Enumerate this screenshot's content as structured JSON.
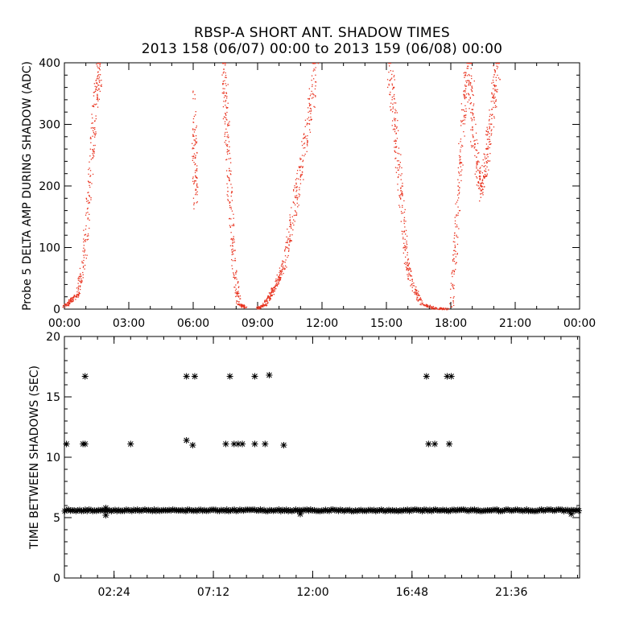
{
  "title_line1": "RBSP-A SHORT ANT. SHADOW TIMES",
  "title_line2": "2013 158 (06/07) 00:00 to 2013 159 (06/08) 00:00",
  "chart_data": [
    {
      "type": "scatter",
      "ylabel": "Probe 5 DELTA AMP DURING SHADOW (ADC)",
      "x_unit": "hours",
      "xlim": [
        0,
        24
      ],
      "ylim": [
        0,
        400
      ],
      "x_ticks": [
        0,
        3,
        6,
        9,
        12,
        15,
        18,
        21,
        24
      ],
      "x_tick_labels": [
        "00:00",
        "03:00",
        "06:00",
        "09:00",
        "12:00",
        "15:00",
        "18:00",
        "21:00",
        "00:00"
      ],
      "y_ticks": [
        0,
        100,
        200,
        300,
        400
      ],
      "y_tick_labels": [
        "0",
        "100",
        "200",
        "300",
        "400"
      ],
      "marker": "dot",
      "color": "#e8321e",
      "segments": [
        {
          "x": [
            0.0,
            0.3,
            0.6,
            0.9,
            1.1,
            1.3,
            1.5,
            1.65
          ],
          "y": [
            5,
            15,
            25,
            80,
            180,
            280,
            360,
            400
          ]
        },
        {
          "x": [
            6.0,
            6.05,
            6.1
          ],
          "y": [
            330,
            240,
            170
          ]
        },
        {
          "x": [
            7.4,
            7.5,
            7.6,
            7.75,
            7.9,
            8.1,
            8.4
          ],
          "y": [
            400,
            330,
            250,
            150,
            60,
            10,
            3
          ]
        },
        {
          "x": [
            9.0,
            9.3,
            9.6,
            9.9,
            10.2,
            10.5,
            10.8,
            11.1,
            11.4,
            11.7
          ],
          "y": [
            2,
            8,
            25,
            45,
            70,
            130,
            190,
            250,
            320,
            400
          ]
        },
        {
          "x": [
            15.1,
            15.3,
            15.5,
            15.7,
            15.9,
            16.2,
            16.6,
            17.2,
            17.8
          ],
          "y": [
            400,
            330,
            250,
            170,
            80,
            40,
            10,
            2,
            1
          ]
        },
        {
          "x": [
            18.0,
            18.2,
            18.4,
            18.6,
            18.8,
            19.0
          ],
          "y": [
            2,
            100,
            220,
            330,
            400,
            330
          ]
        },
        {
          "x": [
            19.0,
            19.2,
            19.4,
            19.6,
            19.8,
            20.0,
            20.2
          ],
          "y": [
            300,
            240,
            190,
            230,
            290,
            350,
            400
          ]
        }
      ]
    },
    {
      "type": "scatter",
      "ylabel": "TIME BETWEEN SHADOWS (SEC)",
      "x_unit": "hours",
      "xlim": [
        0,
        24.9
      ],
      "ylim": [
        0,
        20
      ],
      "x_ticks": [
        2.4,
        7.2,
        12.0,
        16.8,
        21.6
      ],
      "x_tick_labels": [
        "02:24",
        "07:12",
        "12:00",
        "16:48",
        "21:36"
      ],
      "y_ticks": [
        0,
        5,
        10,
        15,
        20
      ],
      "y_tick_labels": [
        "0",
        "5",
        "10",
        "15",
        "20"
      ],
      "marker": "asterisk",
      "color": "#000000",
      "baseline": {
        "y": 5.6,
        "x_range": [
          0,
          24.9
        ]
      },
      "points": [
        {
          "x": 0.1,
          "y": 11.1
        },
        {
          "x": 0.9,
          "y": 11.1
        },
        {
          "x": 1.0,
          "y": 16.7
        },
        {
          "x": 1.0,
          "y": 11.1
        },
        {
          "x": 2.0,
          "y": 5.8
        },
        {
          "x": 2.0,
          "y": 5.2
        },
        {
          "x": 3.2,
          "y": 11.1
        },
        {
          "x": 5.9,
          "y": 11.4
        },
        {
          "x": 5.9,
          "y": 16.7
        },
        {
          "x": 6.2,
          "y": 11.0
        },
        {
          "x": 6.3,
          "y": 16.7
        },
        {
          "x": 7.8,
          "y": 11.1
        },
        {
          "x": 8.0,
          "y": 16.7
        },
        {
          "x": 8.2,
          "y": 11.1
        },
        {
          "x": 8.4,
          "y": 11.1
        },
        {
          "x": 8.6,
          "y": 11.1
        },
        {
          "x": 9.2,
          "y": 16.7
        },
        {
          "x": 9.2,
          "y": 11.1
        },
        {
          "x": 9.7,
          "y": 11.1
        },
        {
          "x": 9.9,
          "y": 16.8
        },
        {
          "x": 10.6,
          "y": 11.0
        },
        {
          "x": 17.5,
          "y": 16.7
        },
        {
          "x": 17.6,
          "y": 11.1
        },
        {
          "x": 17.9,
          "y": 11.1
        },
        {
          "x": 18.5,
          "y": 16.7
        },
        {
          "x": 18.6,
          "y": 11.1
        },
        {
          "x": 18.7,
          "y": 16.7
        },
        {
          "x": 11.4,
          "y": 5.3
        },
        {
          "x": 24.5,
          "y": 5.3
        }
      ]
    }
  ]
}
